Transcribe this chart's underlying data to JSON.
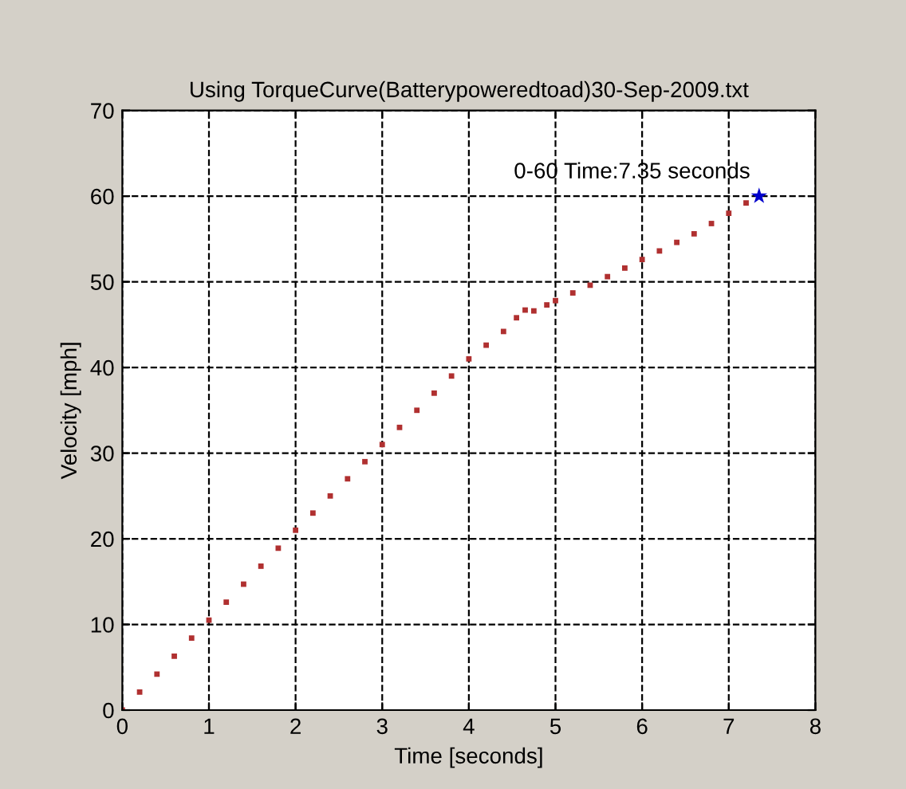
{
  "chart_data": {
    "type": "scatter",
    "title": "Using TorqueCurve(Batterypoweredtoad)30-Sep-2009.txt",
    "xlabel": "Time [seconds]",
    "ylabel": "Velocity [mph]",
    "series": [
      {
        "color": "#b03030",
        "marker": "square",
        "x": [
          0,
          0.2,
          0.4,
          0.6,
          0.8,
          1,
          1.2,
          1.4,
          1.6,
          1.8,
          2,
          2.2,
          2.4,
          2.6,
          2.8,
          3,
          3.2,
          3.4,
          3.6,
          3.8,
          4,
          4.2,
          4.4,
          4.55,
          4.65,
          4.75,
          4.9,
          5,
          5.2,
          5.4,
          5.6,
          5.8,
          6,
          6.2,
          6.4,
          6.6,
          6.8,
          7,
          7.2
        ],
        "values": [
          0,
          2.1,
          4.2,
          6.3,
          8.4,
          10.5,
          12.6,
          14.7,
          16.8,
          18.9,
          21,
          23,
          25,
          27,
          29,
          31,
          33,
          35,
          37,
          39,
          41,
          42.6,
          44.2,
          45.8,
          46.7,
          46.6,
          47.3,
          47.8,
          48.7,
          49.6,
          50.6,
          51.6,
          52.6,
          53.6,
          54.6,
          55.6,
          56.8,
          58,
          59.2
        ]
      },
      {
        "color": "#0000cc",
        "marker": "star",
        "x": [
          7.35
        ],
        "values": [
          60
        ]
      }
    ],
    "annotations": [
      {
        "text": "0-60 Time:7.35 seconds",
        "x": 7.35,
        "y": 60
      }
    ],
    "xlim": [
      0,
      8
    ],
    "xticks": [
      0,
      1,
      2,
      3,
      4,
      5,
      6,
      7,
      8
    ],
    "ylim": [
      0,
      70
    ],
    "yticks": [
      0,
      10,
      20,
      30,
      40,
      50,
      60,
      70
    ],
    "grid": true,
    "line_style": "dashed"
  }
}
